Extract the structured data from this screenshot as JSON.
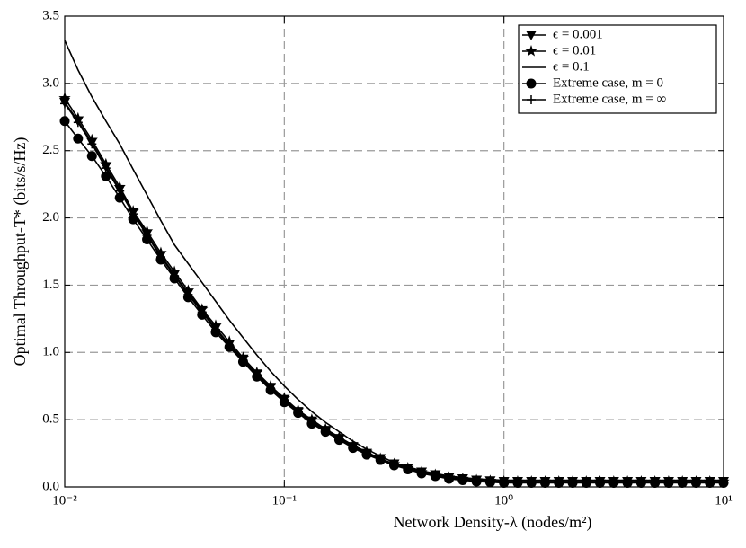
{
  "chart_data": {
    "type": "line",
    "xscale": "log",
    "grid": true,
    "legend": "upper right",
    "xlabel": "Network Density-λ (nodes/m²)",
    "ylabel": "Optimal Throughput-T* (bits/s/Hz)",
    "xlim": [
      0.01,
      10
    ],
    "ylim": [
      0,
      3.5
    ],
    "xticks": [
      {
        "value": 0.01,
        "label": "10⁻²"
      },
      {
        "value": 0.1,
        "label": "10⁻¹"
      },
      {
        "value": 1,
        "label": "10⁰"
      },
      {
        "value": 10,
        "label": "10¹"
      }
    ],
    "yticks": [
      {
        "value": 0,
        "label": "0.0"
      },
      {
        "value": 0.5,
        "label": "0.5"
      },
      {
        "value": 1,
        "label": "1.0"
      },
      {
        "value": 1.5,
        "label": "1.5"
      },
      {
        "value": 2,
        "label": "2.0"
      },
      {
        "value": 2.5,
        "label": "2.5"
      },
      {
        "value": 3,
        "label": "3.0"
      },
      {
        "value": 3.5,
        "label": "3.5"
      }
    ],
    "x": [
      0.01,
      0.0115,
      0.0133,
      0.0154,
      0.0178,
      0.0205,
      0.0237,
      0.0274,
      0.0316,
      0.0365,
      0.0422,
      0.0487,
      0.0562,
      0.0649,
      0.075,
      0.0866,
      0.1,
      0.1155,
      0.1334,
      0.154,
      0.1778,
      0.2054,
      0.2371,
      0.2738,
      0.3162,
      0.3652,
      0.4217,
      0.487,
      0.5623,
      0.6494,
      0.7499,
      0.866,
      1,
      1.155,
      1.334,
      1.54,
      1.778,
      2.054,
      2.371,
      2.738,
      3.162,
      3.652,
      4.217,
      4.87,
      5.623,
      6.494,
      7.499,
      8.66,
      10
    ],
    "series": [
      {
        "name": "ϵ = 0.001",
        "color": "#000000",
        "marker": "triangle-down",
        "values": [
          2.86,
          2.72,
          2.56,
          2.38,
          2.21,
          2.04,
          1.88,
          1.72,
          1.58,
          1.44,
          1.31,
          1.18,
          1.06,
          0.95,
          0.84,
          0.74,
          0.65,
          0.56,
          0.49,
          0.42,
          0.36,
          0.3,
          0.25,
          0.21,
          0.17,
          0.14,
          0.11,
          0.09,
          0.07,
          0.06,
          0.05,
          0.045,
          0.04,
          0.04,
          0.04,
          0.04,
          0.04,
          0.04,
          0.04,
          0.04,
          0.04,
          0.04,
          0.04,
          0.04,
          0.04,
          0.04,
          0.04,
          0.04,
          0.04
        ]
      },
      {
        "name": "ϵ = 0.01",
        "color": "#000000",
        "marker": "star",
        "values": [
          2.89,
          2.74,
          2.58,
          2.4,
          2.23,
          2.05,
          1.9,
          1.74,
          1.6,
          1.46,
          1.32,
          1.2,
          1.08,
          0.96,
          0.85,
          0.75,
          0.66,
          0.57,
          0.5,
          0.43,
          0.37,
          0.31,
          0.26,
          0.21,
          0.17,
          0.14,
          0.11,
          0.09,
          0.07,
          0.06,
          0.05,
          0.045,
          0.04,
          0.04,
          0.04,
          0.04,
          0.04,
          0.04,
          0.04,
          0.04,
          0.04,
          0.04,
          0.04,
          0.04,
          0.04,
          0.04,
          0.04,
          0.04,
          0.04
        ]
      },
      {
        "name": "ϵ = 0.1",
        "color": "#000000",
        "marker": "none",
        "values": [
          3.32,
          3.1,
          2.9,
          2.72,
          2.55,
          2.36,
          2.17,
          1.98,
          1.8,
          1.66,
          1.52,
          1.38,
          1.24,
          1.11,
          0.98,
          0.86,
          0.75,
          0.65,
          0.56,
          0.48,
          0.41,
          0.34,
          0.28,
          0.23,
          0.18,
          0.15,
          0.12,
          0.1,
          0.08,
          0.07,
          0.06,
          0.055,
          0.05,
          0.05,
          0.05,
          0.05,
          0.05,
          0.05,
          0.05,
          0.05,
          0.05,
          0.05,
          0.05,
          0.05,
          0.05,
          0.05,
          0.05,
          0.05,
          0.05
        ]
      },
      {
        "name": "Extreme case, m = 0",
        "color": "#000000",
        "marker": "circle",
        "values": [
          2.72,
          2.59,
          2.46,
          2.31,
          2.15,
          1.99,
          1.84,
          1.69,
          1.55,
          1.41,
          1.28,
          1.15,
          1.04,
          0.93,
          0.82,
          0.72,
          0.63,
          0.55,
          0.47,
          0.41,
          0.35,
          0.29,
          0.24,
          0.2,
          0.16,
          0.13,
          0.1,
          0.08,
          0.06,
          0.05,
          0.04,
          0.035,
          0.03,
          0.03,
          0.03,
          0.03,
          0.03,
          0.03,
          0.03,
          0.03,
          0.03,
          0.03,
          0.03,
          0.03,
          0.03,
          0.03,
          0.03,
          0.03,
          0.03
        ]
      },
      {
        "name": "Extreme case, m = ∞",
        "color": "#000000",
        "marker": "plus",
        "values": [
          2.85,
          2.71,
          2.55,
          2.37,
          2.2,
          2.03,
          1.87,
          1.71,
          1.57,
          1.43,
          1.3,
          1.17,
          1.05,
          0.94,
          0.83,
          0.73,
          0.64,
          0.56,
          0.48,
          0.42,
          0.36,
          0.3,
          0.25,
          0.2,
          0.17,
          0.14,
          0.11,
          0.09,
          0.07,
          0.06,
          0.05,
          0.045,
          0.04,
          0.04,
          0.04,
          0.04,
          0.04,
          0.04,
          0.04,
          0.04,
          0.04,
          0.04,
          0.04,
          0.04,
          0.04,
          0.04,
          0.04,
          0.04,
          0.04
        ]
      }
    ]
  }
}
